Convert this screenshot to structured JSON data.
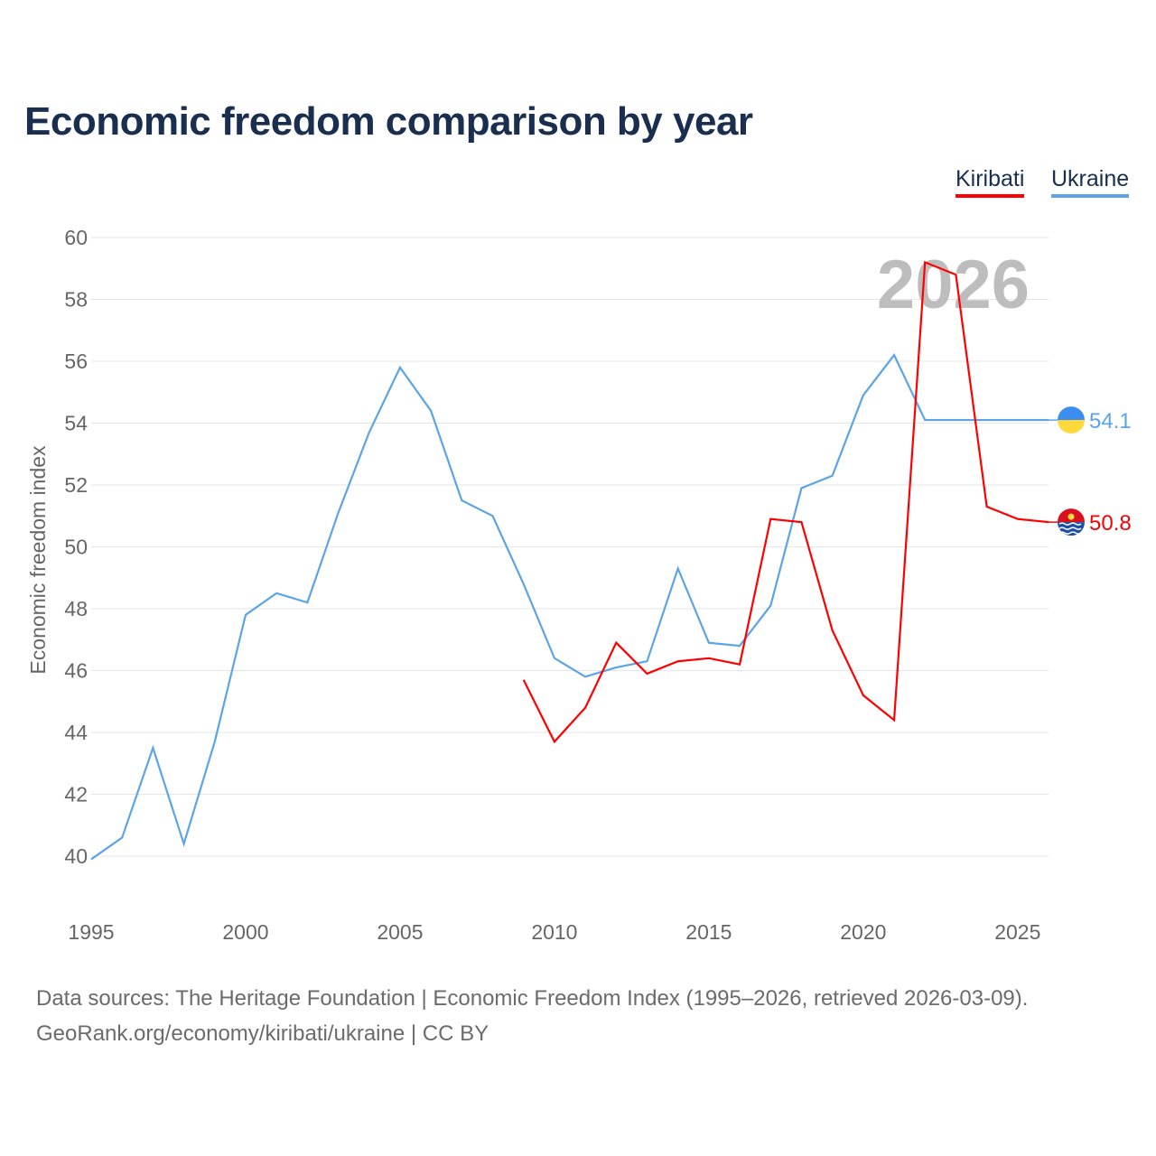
{
  "title": "Economic freedom comparison by year",
  "legend": [
    {
      "name": "Kiribati",
      "color": "#ff0000"
    },
    {
      "name": "Ukraine",
      "color": "#5ba4e8"
    }
  ],
  "footer": {
    "line1": "Data sources: The Heritage Foundation | Economic Freedom Index (1995–2026, retrieved 2026-03-09).",
    "line2": "GeoRank.org/economy/kiribati/ukraine | CC BY"
  },
  "chart_data": {
    "type": "line",
    "title": "Economic freedom comparison by year",
    "ylabel": "Economic freedom index",
    "xlabel": "",
    "ylim": [
      40,
      60
    ],
    "xlim": [
      1995,
      2026
    ],
    "yticks": [
      "40",
      "42",
      "44",
      "46",
      "48",
      "50",
      "52",
      "54",
      "56",
      "58",
      "60"
    ],
    "xticks": [
      "1995",
      "2000",
      "2005",
      "2010",
      "2015",
      "2020",
      "2025"
    ],
    "watermark_year": "2026",
    "grid": true,
    "series": [
      {
        "name": "Ukraine",
        "color": "#5ba4e8",
        "end_label": "54.1",
        "x": [
          1995,
          1996,
          1997,
          1998,
          1999,
          2000,
          2001,
          2002,
          2003,
          2004,
          2005,
          2006,
          2007,
          2008,
          2009,
          2010,
          2011,
          2012,
          2013,
          2014,
          2015,
          2016,
          2017,
          2018,
          2019,
          2020,
          2021,
          2022,
          2023,
          2024,
          2025,
          2026
        ],
        "y": [
          39.9,
          40.6,
          43.5,
          40.4,
          43.7,
          47.8,
          48.5,
          48.2,
          51.1,
          53.7,
          55.8,
          54.4,
          51.5,
          51.0,
          48.8,
          46.4,
          45.8,
          46.1,
          46.3,
          49.3,
          46.9,
          46.8,
          48.1,
          51.9,
          52.3,
          54.9,
          56.2,
          54.1,
          54.1,
          54.1,
          54.1,
          54.1
        ]
      },
      {
        "name": "Kiribati",
        "color": "#ff0000",
        "end_label": "50.8",
        "x": [
          2009,
          2010,
          2011,
          2012,
          2013,
          2014,
          2015,
          2016,
          2017,
          2018,
          2019,
          2020,
          2021,
          2022,
          2023,
          2024,
          2025,
          2026
        ],
        "y": [
          45.7,
          43.7,
          44.8,
          46.9,
          45.9,
          46.3,
          46.4,
          46.2,
          50.9,
          50.8,
          47.3,
          45.2,
          44.4,
          59.2,
          58.8,
          51.3,
          50.9,
          50.8
        ]
      }
    ]
  }
}
